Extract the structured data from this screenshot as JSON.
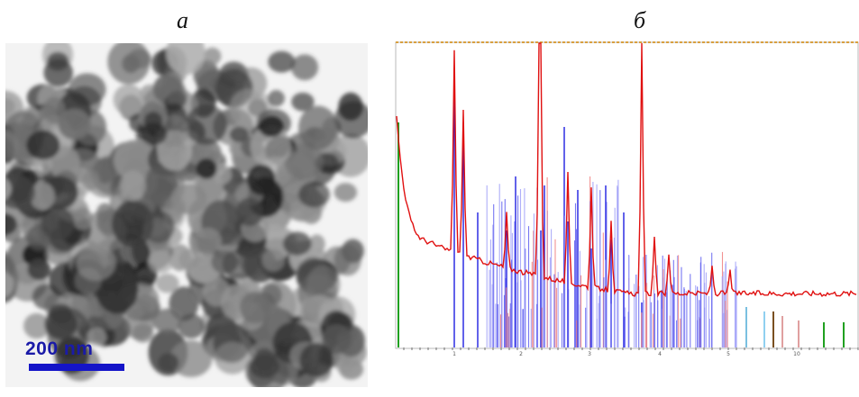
{
  "panels": {
    "a_label": "a",
    "b_label": "б"
  },
  "tem": {
    "scale_text": "200 nm",
    "scale_color": "#1414c8"
  },
  "xrd": {
    "pattern_color": "#e01010",
    "stick_color": "#2020e0",
    "x_tick_labels": [
      "1",
      "2",
      "3",
      "4",
      "5",
      "10"
    ]
  }
}
